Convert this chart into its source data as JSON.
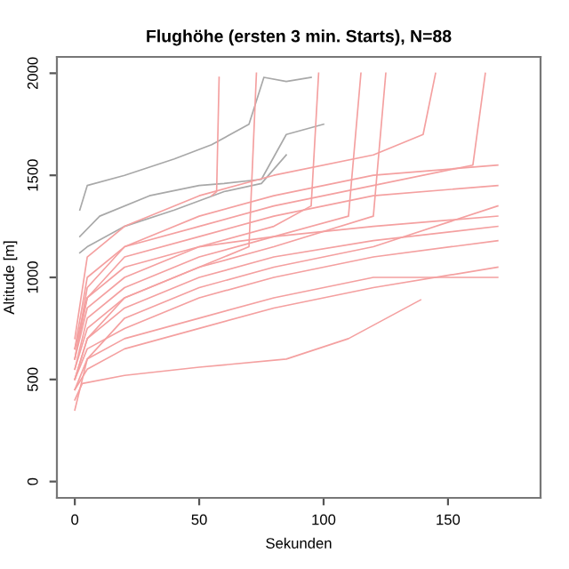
{
  "chart_data": {
    "type": "line",
    "title": "Flughöhe (ersten 3 min. Starts), N=88",
    "xlabel": "Sekunden",
    "ylabel": "Altitude [m]",
    "xlim": [
      -7.2,
      187.2
    ],
    "ylim": [
      -80,
      2080
    ],
    "xticks": [
      0,
      50,
      100,
      150
    ],
    "yticks": [
      0,
      500,
      1000,
      1500,
      2000
    ],
    "grid": false,
    "legend": false,
    "line_style": "solid",
    "series": [
      {
        "color": "#a8a8a8",
        "x": [
          2,
          5,
          20,
          40,
          55,
          70,
          76,
          85,
          95
        ],
        "values": [
          1330,
          1450,
          1500,
          1580,
          1650,
          1750,
          1980,
          1960,
          1980
        ]
      },
      {
        "color": "#a8a8a8",
        "x": [
          2,
          10,
          30,
          50,
          60,
          75,
          85,
          100
        ],
        "values": [
          1200,
          1300,
          1400,
          1450,
          1460,
          1480,
          1700,
          1750
        ]
      },
      {
        "color": "#a8a8a8",
        "x": [
          2,
          5,
          20,
          40,
          60,
          75,
          85
        ],
        "values": [
          1120,
          1150,
          1250,
          1330,
          1420,
          1460,
          1600
        ]
      },
      {
        "color": "#f4a0a0",
        "x": [
          0,
          5,
          20,
          50,
          80,
          120,
          170
        ],
        "values": [
          600,
          900,
          1050,
          1150,
          1200,
          1250,
          1300
        ]
      },
      {
        "color": "#f4a0a0",
        "x": [
          0,
          5,
          20,
          50,
          80,
          120,
          170
        ],
        "values": [
          500,
          700,
          850,
          1000,
          1100,
          1180,
          1250
        ]
      },
      {
        "color": "#f4a0a0",
        "x": [
          0,
          5,
          20,
          50,
          80,
          120,
          170
        ],
        "values": [
          450,
          550,
          650,
          750,
          850,
          950,
          1050
        ]
      },
      {
        "color": "#f4a0a0",
        "x": [
          0,
          3,
          20,
          50,
          85,
          110,
          139
        ],
        "values": [
          400,
          480,
          520,
          560,
          600,
          700,
          890
        ]
      },
      {
        "color": "#f4a0a0",
        "x": [
          0,
          5,
          20,
          50,
          80,
          120,
          170
        ],
        "values": [
          650,
          1000,
          1150,
          1300,
          1400,
          1500,
          1550
        ]
      },
      {
        "color": "#f4a0a0",
        "x": [
          0,
          5,
          20,
          50,
          80,
          110,
          115
        ],
        "values": [
          550,
          800,
          950,
          1100,
          1200,
          1300,
          2000
        ]
      },
      {
        "color": "#f4a0a0",
        "x": [
          0,
          5,
          20,
          50,
          80,
          120,
          170
        ],
        "values": [
          500,
          650,
          750,
          900,
          1000,
          1100,
          1180
        ]
      },
      {
        "color": "#f4a0a0",
        "x": [
          0,
          5,
          20,
          50,
          80,
          95,
          98
        ],
        "values": [
          600,
          850,
          1000,
          1150,
          1250,
          1350,
          2000
        ]
      },
      {
        "color": "#f4a0a0",
        "x": [
          0,
          5,
          20,
          50,
          80,
          120,
          140,
          145
        ],
        "values": [
          700,
          1100,
          1250,
          1400,
          1500,
          1600,
          1700,
          2000
        ]
      },
      {
        "color": "#f4a0a0",
        "x": [
          0,
          5,
          20,
          50,
          80,
          120,
          170
        ],
        "values": [
          450,
          600,
          700,
          800,
          900,
          1000,
          1000
        ]
      },
      {
        "color": "#f4a0a0",
        "x": [
          0,
          5,
          20,
          50,
          80,
          120,
          125
        ],
        "values": [
          550,
          750,
          900,
          1050,
          1150,
          1300,
          2000
        ]
      },
      {
        "color": "#f4a0a0",
        "x": [
          0,
          5,
          20,
          50,
          80,
          120,
          170
        ],
        "values": [
          650,
          900,
          1100,
          1200,
          1300,
          1400,
          1450
        ]
      },
      {
        "color": "#f4a0a0",
        "x": [
          0,
          5,
          20,
          50,
          80,
          120,
          170
        ],
        "values": [
          350,
          600,
          800,
          950,
          1050,
          1150,
          1350
        ]
      },
      {
        "color": "#f4a0a0",
        "x": [
          0,
          5,
          20,
          50,
          70,
          73
        ],
        "values": [
          500,
          700,
          900,
          1050,
          1150,
          2000
        ]
      },
      {
        "color": "#f4a0a0",
        "x": [
          0,
          5,
          20,
          50,
          80,
          120,
          160,
          165
        ],
        "values": [
          600,
          950,
          1150,
          1250,
          1350,
          1450,
          1550,
          2000
        ]
      },
      {
        "color": "#f4a0a0",
        "x": [
          55,
          57,
          58
        ],
        "values": [
          1400,
          1420,
          1980
        ]
      }
    ]
  }
}
